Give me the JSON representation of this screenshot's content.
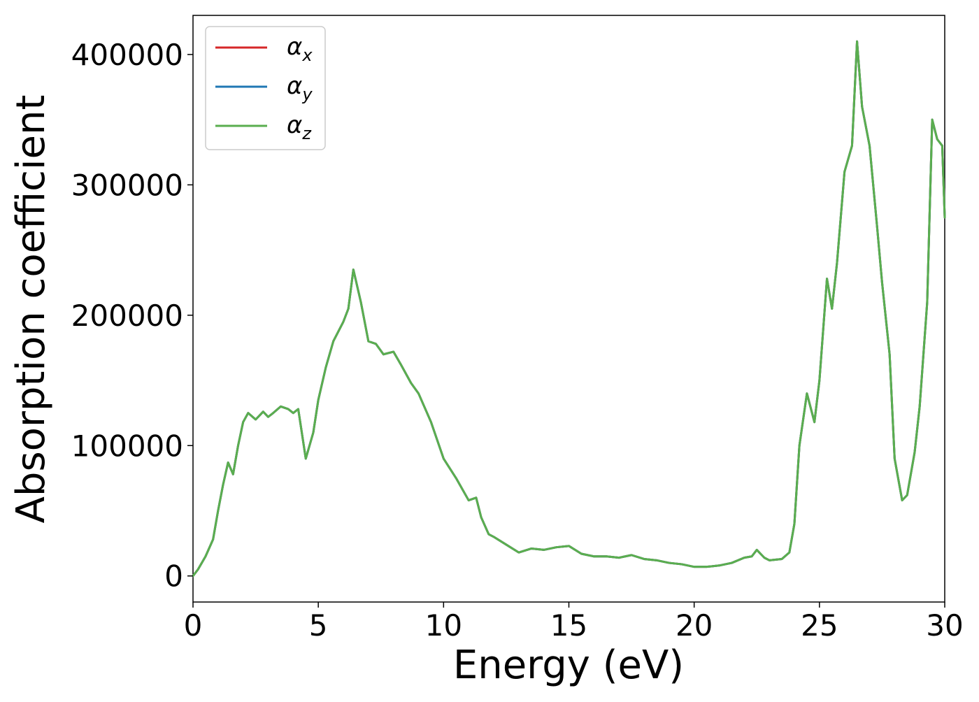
{
  "chart_data": {
    "type": "line",
    "title": "",
    "xlabel": "Energy (eV)",
    "ylabel": "Absorption coefficient",
    "xlim": [
      0,
      30
    ],
    "ylim": [
      -20000,
      430000
    ],
    "xticks": [
      0,
      5,
      10,
      15,
      20,
      25,
      30
    ],
    "yticks": [
      0,
      100000,
      200000,
      300000,
      400000
    ],
    "grid": false,
    "legend": {
      "placement": "top-left"
    },
    "series": [
      {
        "name": "α",
        "subscript": "x",
        "color": "#d62728",
        "x": [
          0,
          0.2,
          0.5,
          0.8,
          1.0,
          1.2,
          1.4,
          1.6,
          1.8,
          2.0,
          2.2,
          2.5,
          2.8,
          3.0,
          3.2,
          3.5,
          3.8,
          4.0,
          4.2,
          4.5,
          4.8,
          5.0,
          5.3,
          5.6,
          6.0,
          6.2,
          6.4,
          6.7,
          7.0,
          7.3,
          7.6,
          8.0,
          8.3,
          8.7,
          9.0,
          9.5,
          10.0,
          10.5,
          11.0,
          11.3,
          11.5,
          11.8,
          12.0,
          12.5,
          13.0,
          13.5,
          14.0,
          14.5,
          15.0,
          15.5,
          16.0,
          16.5,
          17.0,
          17.5,
          18.0,
          18.5,
          19.0,
          19.5,
          20.0,
          20.5,
          21.0,
          21.5,
          22.0,
          22.3,
          22.5,
          22.8,
          23.0,
          23.5,
          23.8,
          24.0,
          24.2,
          24.5,
          24.8,
          25.0,
          25.3,
          25.5,
          25.7,
          26.0,
          26.3,
          26.5,
          26.7,
          27.0,
          27.3,
          27.5,
          27.8,
          28.0,
          28.3,
          28.5,
          28.8,
          29.0,
          29.3,
          29.5,
          29.7,
          29.9,
          30.0
        ],
        "values": [
          0,
          5000,
          15000,
          28000,
          50000,
          70000,
          87000,
          78000,
          100000,
          118000,
          125000,
          120000,
          126000,
          122000,
          125000,
          130000,
          128000,
          125000,
          128000,
          90000,
          110000,
          135000,
          160000,
          180000,
          195000,
          205000,
          235000,
          210000,
          180000,
          178000,
          170000,
          172000,
          162000,
          148000,
          140000,
          118000,
          90000,
          75000,
          58000,
          60000,
          45000,
          32000,
          30000,
          24000,
          18000,
          21000,
          20000,
          22000,
          23000,
          17000,
          15000,
          15000,
          14000,
          16000,
          13000,
          12000,
          10000,
          9000,
          7000,
          7000,
          8000,
          10000,
          14000,
          15000,
          20000,
          14000,
          12000,
          13000,
          18000,
          40000,
          100000,
          140000,
          118000,
          150000,
          228000,
          205000,
          240000,
          310000,
          330000,
          410000,
          360000,
          330000,
          268000,
          225000,
          170000,
          90000,
          58000,
          62000,
          95000,
          130000,
          210000,
          350000,
          335000,
          330000,
          275000
        ]
      },
      {
        "name": "α",
        "subscript": "y",
        "color": "#1f77b4",
        "x": [
          0,
          0.2,
          0.5,
          0.8,
          1.0,
          1.2,
          1.4,
          1.6,
          1.8,
          2.0,
          2.2,
          2.5,
          2.8,
          3.0,
          3.2,
          3.5,
          3.8,
          4.0,
          4.2,
          4.5,
          4.8,
          5.0,
          5.3,
          5.6,
          6.0,
          6.2,
          6.4,
          6.7,
          7.0,
          7.3,
          7.6,
          8.0,
          8.3,
          8.7,
          9.0,
          9.5,
          10.0,
          10.5,
          11.0,
          11.3,
          11.5,
          11.8,
          12.0,
          12.5,
          13.0,
          13.5,
          14.0,
          14.5,
          15.0,
          15.5,
          16.0,
          16.5,
          17.0,
          17.5,
          18.0,
          18.5,
          19.0,
          19.5,
          20.0,
          20.5,
          21.0,
          21.5,
          22.0,
          22.3,
          22.5,
          22.8,
          23.0,
          23.5,
          23.8,
          24.0,
          24.2,
          24.5,
          24.8,
          25.0,
          25.3,
          25.5,
          25.7,
          26.0,
          26.3,
          26.5,
          26.7,
          27.0,
          27.3,
          27.5,
          27.8,
          28.0,
          28.3,
          28.5,
          28.8,
          29.0,
          29.3,
          29.5,
          29.7,
          29.9,
          30.0
        ],
        "values": [
          0,
          5000,
          15000,
          28000,
          50000,
          70000,
          87000,
          78000,
          100000,
          118000,
          125000,
          120000,
          126000,
          122000,
          125000,
          130000,
          128000,
          125000,
          128000,
          90000,
          110000,
          135000,
          160000,
          180000,
          195000,
          205000,
          235000,
          210000,
          180000,
          178000,
          170000,
          172000,
          162000,
          148000,
          140000,
          118000,
          90000,
          75000,
          58000,
          60000,
          45000,
          32000,
          30000,
          24000,
          18000,
          21000,
          20000,
          22000,
          23000,
          17000,
          15000,
          15000,
          14000,
          16000,
          13000,
          12000,
          10000,
          9000,
          7000,
          7000,
          8000,
          10000,
          14000,
          15000,
          20000,
          14000,
          12000,
          13000,
          18000,
          40000,
          100000,
          140000,
          118000,
          150000,
          228000,
          205000,
          240000,
          310000,
          330000,
          410000,
          360000,
          330000,
          268000,
          225000,
          170000,
          90000,
          58000,
          62000,
          95000,
          130000,
          210000,
          350000,
          335000,
          330000,
          275000
        ]
      },
      {
        "name": "α",
        "subscript": "z",
        "color": "#5aae4f",
        "x": [
          0,
          0.2,
          0.5,
          0.8,
          1.0,
          1.2,
          1.4,
          1.6,
          1.8,
          2.0,
          2.2,
          2.5,
          2.8,
          3.0,
          3.2,
          3.5,
          3.8,
          4.0,
          4.2,
          4.5,
          4.8,
          5.0,
          5.3,
          5.6,
          6.0,
          6.2,
          6.4,
          6.7,
          7.0,
          7.3,
          7.6,
          8.0,
          8.3,
          8.7,
          9.0,
          9.5,
          10.0,
          10.5,
          11.0,
          11.3,
          11.5,
          11.8,
          12.0,
          12.5,
          13.0,
          13.5,
          14.0,
          14.5,
          15.0,
          15.5,
          16.0,
          16.5,
          17.0,
          17.5,
          18.0,
          18.5,
          19.0,
          19.5,
          20.0,
          20.5,
          21.0,
          21.5,
          22.0,
          22.3,
          22.5,
          22.8,
          23.0,
          23.5,
          23.8,
          24.0,
          24.2,
          24.5,
          24.8,
          25.0,
          25.3,
          25.5,
          25.7,
          26.0,
          26.3,
          26.5,
          26.7,
          27.0,
          27.3,
          27.5,
          27.8,
          28.0,
          28.3,
          28.5,
          28.8,
          29.0,
          29.3,
          29.5,
          29.7,
          29.9,
          30.0
        ],
        "values": [
          0,
          5000,
          15000,
          28000,
          50000,
          70000,
          87000,
          78000,
          100000,
          118000,
          125000,
          120000,
          126000,
          122000,
          125000,
          130000,
          128000,
          125000,
          128000,
          90000,
          110000,
          135000,
          160000,
          180000,
          195000,
          205000,
          235000,
          210000,
          180000,
          178000,
          170000,
          172000,
          162000,
          148000,
          140000,
          118000,
          90000,
          75000,
          58000,
          60000,
          45000,
          32000,
          30000,
          24000,
          18000,
          21000,
          20000,
          22000,
          23000,
          17000,
          15000,
          15000,
          14000,
          16000,
          13000,
          12000,
          10000,
          9000,
          7000,
          7000,
          8000,
          10000,
          14000,
          15000,
          20000,
          14000,
          12000,
          13000,
          18000,
          40000,
          100000,
          140000,
          118000,
          150000,
          228000,
          205000,
          240000,
          310000,
          330000,
          410000,
          360000,
          330000,
          268000,
          225000,
          170000,
          90000,
          58000,
          62000,
          95000,
          130000,
          210000,
          350000,
          335000,
          330000,
          275000
        ]
      }
    ]
  }
}
